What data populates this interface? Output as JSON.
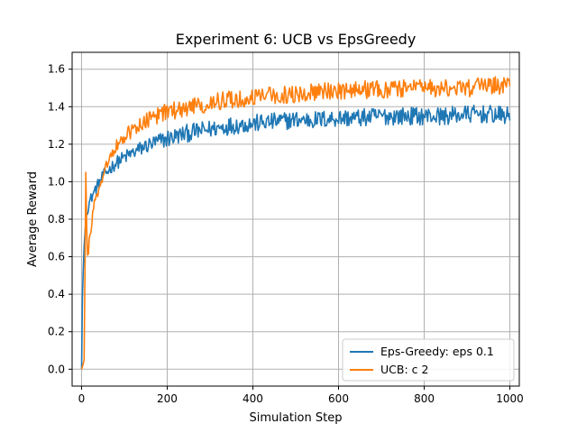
{
  "chart_data": {
    "type": "line",
    "title": "Experiment 6: UCB vs EpsGreedy",
    "xlabel": "Simulation Step",
    "ylabel": "Average Reward",
    "xlim": [
      -22,
      1022
    ],
    "ylim": [
      -0.09,
      1.69
    ],
    "xticks": [
      0,
      200,
      400,
      600,
      800,
      1000
    ],
    "yticks": [
      0.0,
      0.2,
      0.4,
      0.6,
      0.8,
      1.0,
      1.2,
      1.4,
      1.6
    ],
    "grid": true,
    "legend_position": "lower-right",
    "series": [
      {
        "name": "Eps-Greedy: eps 0.1",
        "color": "#1f77b4",
        "x": [
          0,
          2,
          5,
          10,
          15,
          20,
          30,
          40,
          50,
          75,
          100,
          125,
          150,
          175,
          200,
          250,
          300,
          350,
          400,
          450,
          500,
          550,
          600,
          650,
          700,
          750,
          800,
          850,
          900,
          950,
          1000
        ],
        "y": [
          0.0,
          0.38,
          0.62,
          0.8,
          0.87,
          0.9,
          0.95,
          0.99,
          1.03,
          1.09,
          1.13,
          1.16,
          1.19,
          1.21,
          1.23,
          1.26,
          1.28,
          1.3,
          1.31,
          1.32,
          1.33,
          1.33,
          1.34,
          1.34,
          1.35,
          1.35,
          1.35,
          1.35,
          1.36,
          1.36,
          1.35
        ]
      },
      {
        "name": "UCB: c 2",
        "color": "#ff7f0e",
        "x": [
          0,
          3,
          6,
          8,
          10,
          12,
          15,
          18,
          20,
          25,
          30,
          40,
          50,
          60,
          75,
          100,
          125,
          150,
          175,
          200,
          250,
          300,
          350,
          400,
          450,
          500,
          550,
          600,
          650,
          700,
          750,
          800,
          850,
          900,
          950,
          1000
        ],
        "y": [
          0.0,
          0.02,
          0.05,
          0.55,
          1.05,
          0.75,
          0.58,
          0.7,
          0.72,
          0.82,
          0.88,
          0.97,
          1.03,
          1.1,
          1.17,
          1.24,
          1.29,
          1.32,
          1.35,
          1.37,
          1.4,
          1.42,
          1.44,
          1.45,
          1.46,
          1.47,
          1.48,
          1.48,
          1.49,
          1.49,
          1.5,
          1.5,
          1.5,
          1.5,
          1.51,
          1.52
        ]
      }
    ]
  }
}
